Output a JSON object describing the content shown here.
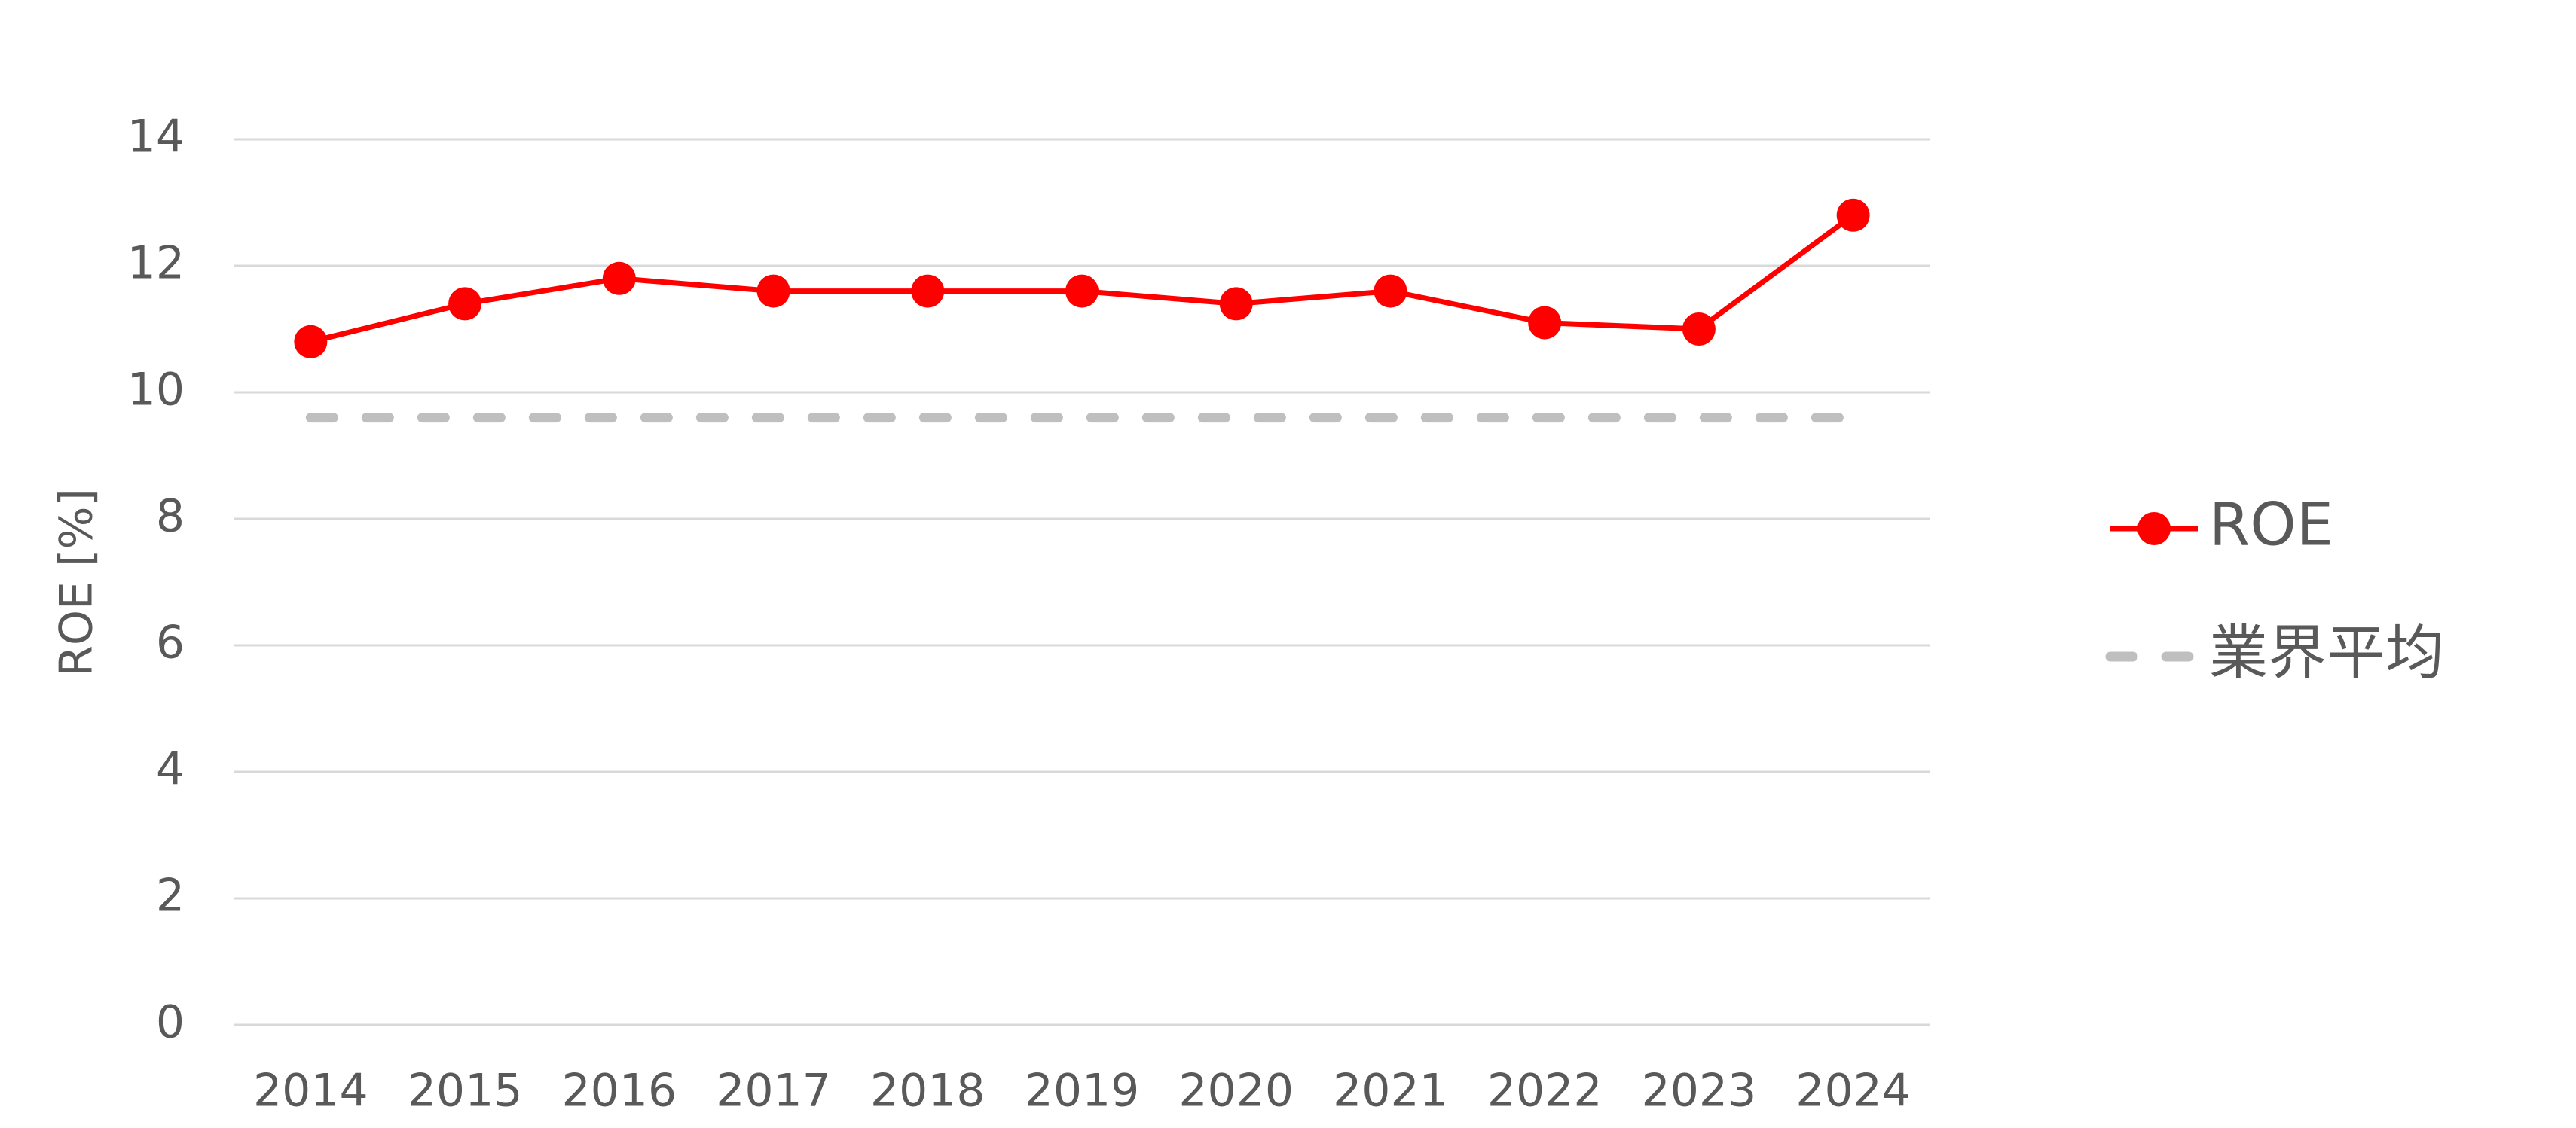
{
  "chart_data": {
    "type": "line",
    "y_label": "ROE [%]",
    "categories": [
      "2014",
      "2015",
      "2016",
      "2017",
      "2018",
      "2019",
      "2020",
      "2021",
      "2022",
      "2023",
      "2024"
    ],
    "series": [
      {
        "name": "ROE",
        "color": "#ff0000",
        "style": "solid",
        "marker": true,
        "values": [
          10.8,
          11.4,
          11.8,
          11.6,
          11.6,
          11.6,
          11.4,
          11.6,
          11.1,
          11.0,
          12.8
        ]
      },
      {
        "name": "業界平均",
        "color": "#bfbfbf",
        "style": "dashed",
        "marker": false,
        "values": [
          9.6,
          9.6,
          9.6,
          9.6,
          9.6,
          9.6,
          9.6,
          9.6,
          9.6,
          9.6,
          9.6
        ]
      }
    ],
    "ylim": [
      0,
      14
    ],
    "yticks": [
      0,
      2,
      4,
      6,
      8,
      10,
      12,
      14
    ],
    "grid": true,
    "legend": "right"
  }
}
